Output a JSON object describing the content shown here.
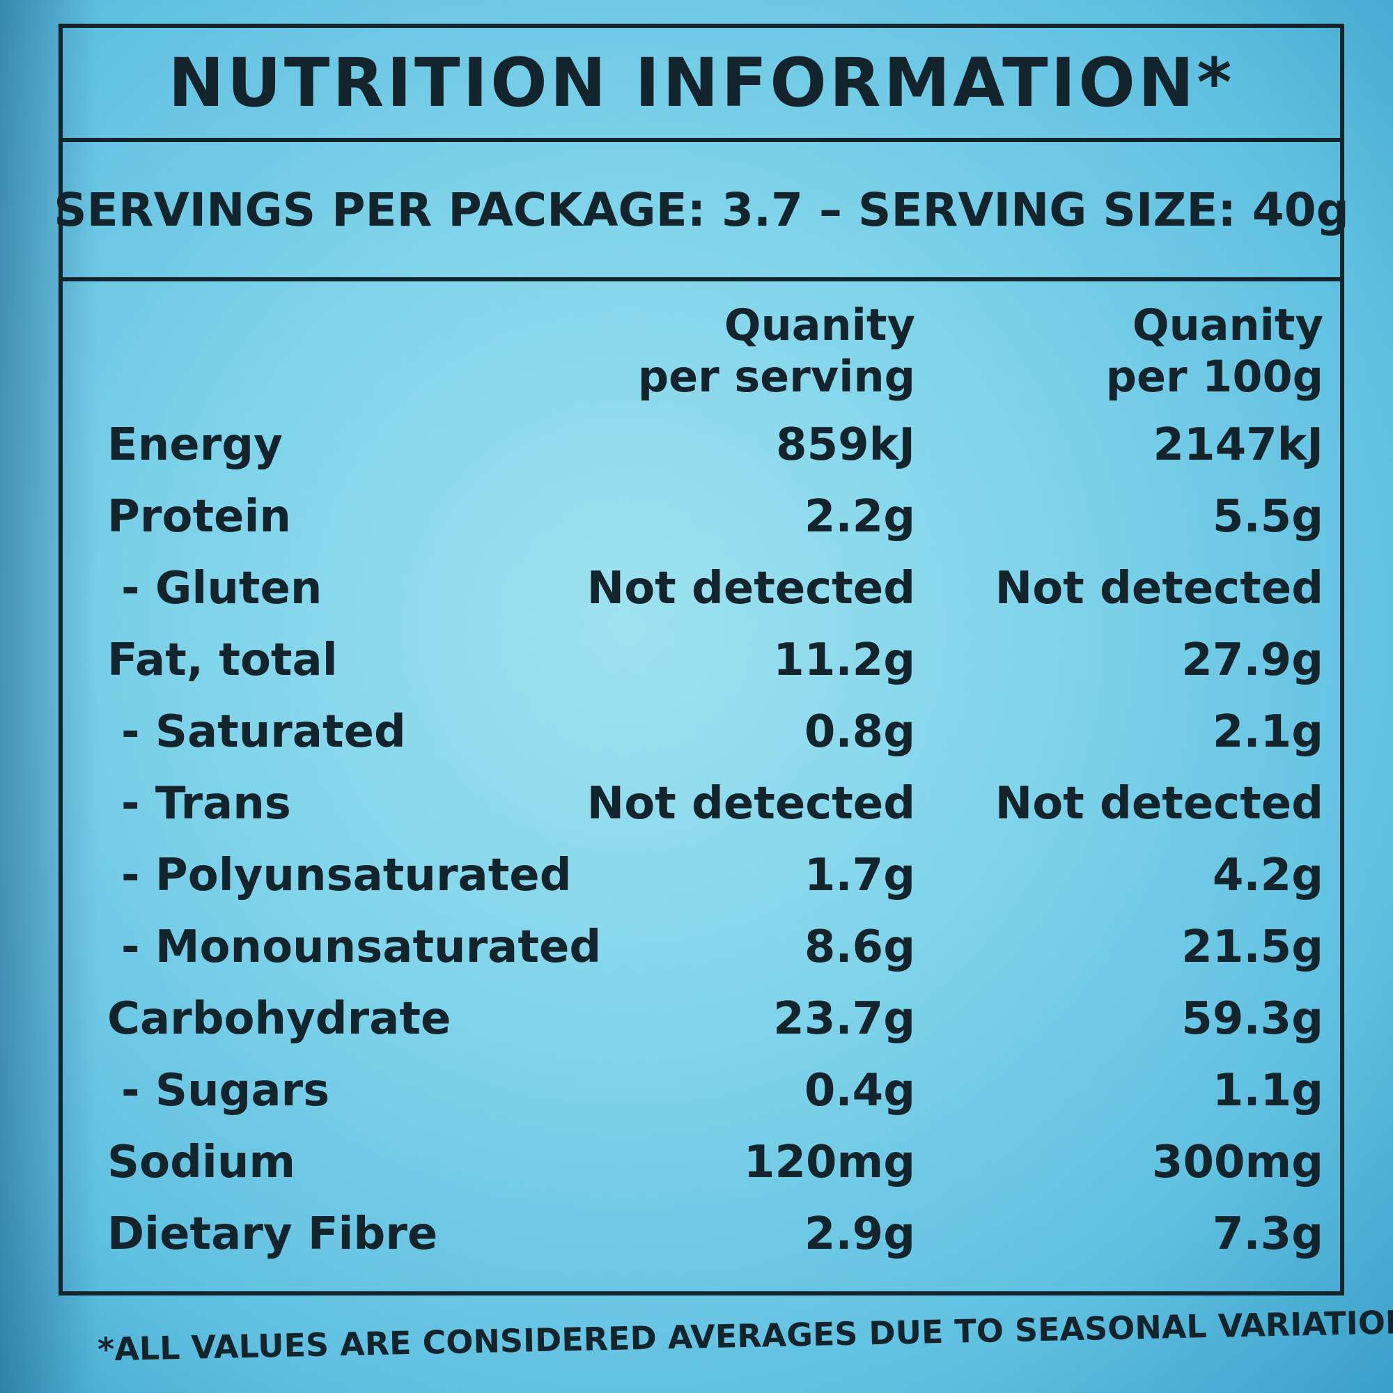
{
  "title": "NUTRITION INFORMATION*",
  "serving_line": "SERVINGS PER PACKAGE: 3.7 – SERVING SIZE: 40g",
  "columns": {
    "per_serving": [
      "Quanity",
      "per serving"
    ],
    "per_100g": [
      "Quanity",
      "per 100g"
    ]
  },
  "rows": [
    {
      "label": "Energy",
      "per_serving": "859kJ",
      "per_100g": "2147kJ",
      "sub": false
    },
    {
      "label": "Protein",
      "per_serving": "2.2g",
      "per_100g": "5.5g",
      "sub": false
    },
    {
      "label": "- Gluten",
      "per_serving": "Not detected",
      "per_100g": "Not detected",
      "sub": true
    },
    {
      "label": "Fat, total",
      "per_serving": "11.2g",
      "per_100g": "27.9g",
      "sub": false
    },
    {
      "label": "- Saturated",
      "per_serving": "0.8g",
      "per_100g": "2.1g",
      "sub": true
    },
    {
      "label": "- Trans",
      "per_serving": "Not detected",
      "per_100g": "Not detected",
      "sub": true
    },
    {
      "label": "- Polyunsaturated",
      "per_serving": "1.7g",
      "per_100g": "4.2g",
      "sub": true
    },
    {
      "label": "- Monounsaturated",
      "per_serving": "8.6g",
      "per_100g": "21.5g",
      "sub": true
    },
    {
      "label": "Carbohydrate",
      "per_serving": "23.7g",
      "per_100g": "59.3g",
      "sub": false
    },
    {
      "label": "- Sugars",
      "per_serving": "0.4g",
      "per_100g": "1.1g",
      "sub": true
    },
    {
      "label": "Sodium",
      "per_serving": "120mg",
      "per_100g": "300mg",
      "sub": false
    },
    {
      "label": "Dietary Fibre",
      "per_serving": "2.9g",
      "per_100g": "7.3g",
      "sub": false
    }
  ],
  "footnote": "*ALL VALUES ARE CONSIDERED AVERAGES DUE TO SEASONAL VARIATION"
}
